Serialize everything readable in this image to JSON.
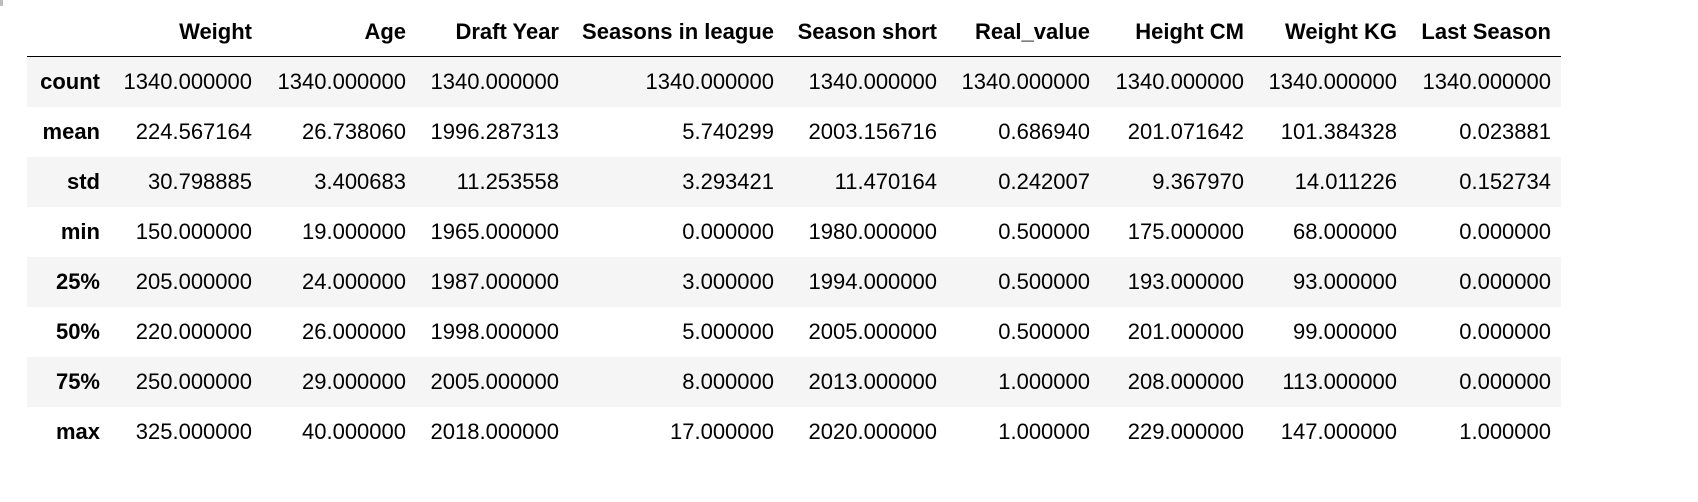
{
  "table": {
    "columns": [
      "",
      "Weight",
      "Age",
      "Draft Year",
      "Seasons in league",
      "Season short",
      "Real_value",
      "Height CM",
      "Weight KG",
      "Last Season"
    ],
    "rows": [
      {
        "label": "count",
        "values": [
          "1340.000000",
          "1340.000000",
          "1340.000000",
          "1340.000000",
          "1340.000000",
          "1340.000000",
          "1340.000000",
          "1340.000000",
          "1340.000000"
        ]
      },
      {
        "label": "mean",
        "values": [
          "224.567164",
          "26.738060",
          "1996.287313",
          "5.740299",
          "2003.156716",
          "0.686940",
          "201.071642",
          "101.384328",
          "0.023881"
        ]
      },
      {
        "label": "std",
        "values": [
          "30.798885",
          "3.400683",
          "11.253558",
          "3.293421",
          "11.470164",
          "0.242007",
          "9.367970",
          "14.011226",
          "0.152734"
        ]
      },
      {
        "label": "min",
        "values": [
          "150.000000",
          "19.000000",
          "1965.000000",
          "0.000000",
          "1980.000000",
          "0.500000",
          "175.000000",
          "68.000000",
          "0.000000"
        ]
      },
      {
        "label": "25%",
        "values": [
          "205.000000",
          "24.000000",
          "1987.000000",
          "3.000000",
          "1994.000000",
          "0.500000",
          "193.000000",
          "93.000000",
          "0.000000"
        ]
      },
      {
        "label": "50%",
        "values": [
          "220.000000",
          "26.000000",
          "1998.000000",
          "5.000000",
          "2005.000000",
          "0.500000",
          "201.000000",
          "99.000000",
          "0.000000"
        ]
      },
      {
        "label": "75%",
        "values": [
          "250.000000",
          "29.000000",
          "2005.000000",
          "8.000000",
          "2013.000000",
          "1.000000",
          "208.000000",
          "113.000000",
          "0.000000"
        ]
      },
      {
        "label": "max",
        "values": [
          "325.000000",
          "40.000000",
          "2018.000000",
          "17.000000",
          "2020.000000",
          "1.000000",
          "229.000000",
          "147.000000",
          "1.000000"
        ]
      }
    ]
  }
}
